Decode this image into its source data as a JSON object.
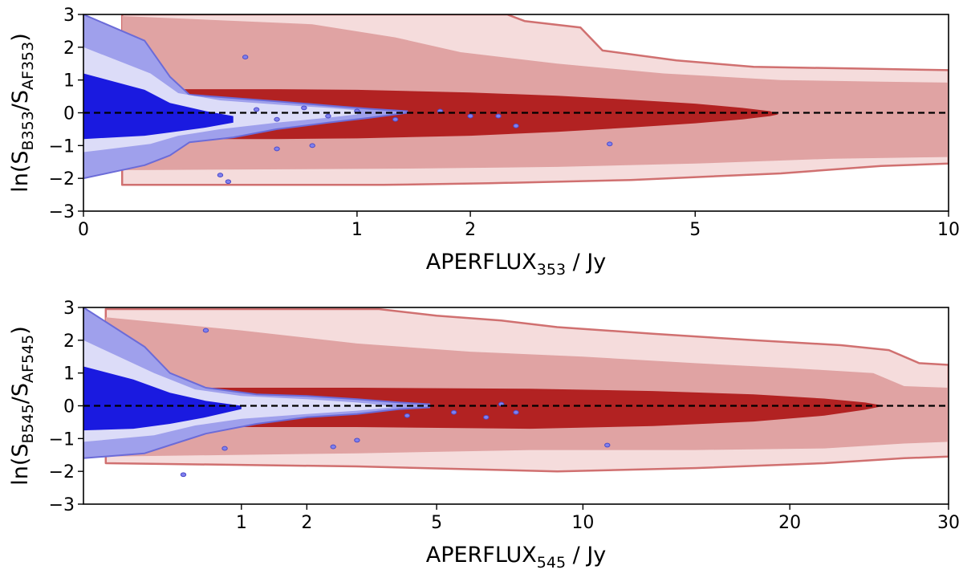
{
  "chart_data": [
    {
      "type": "contour",
      "xlabel": {
        "main": "APERFLUX",
        "sub": "353",
        "suffix": " / Jy"
      },
      "ylabel": {
        "prefix": "ln(S",
        "sub1": "B353",
        "mid": "/S",
        "sub2": "AF353",
        "suffix": ")"
      },
      "xlim": [
        0,
        10
      ],
      "ylim": [
        -3,
        3
      ],
      "x_ticks": [
        0,
        1,
        2,
        5,
        10
      ],
      "x_tick_labels": [
        "0",
        "1",
        "2",
        "5",
        "10"
      ],
      "x_scale": "sqrt",
      "y_ticks": [
        -3,
        -2,
        -1,
        0,
        1,
        2,
        3
      ],
      "y_tick_labels": [
        "−3",
        "−2",
        "−1",
        "0",
        "1",
        "2",
        "3"
      ],
      "reference_line": {
        "y": 0,
        "style": "dashed",
        "color": "#000000"
      },
      "red_contours": [
        {
          "level": "outer",
          "color": "#f5dcdc",
          "upper": [
            [
              0.02,
              3.0
            ],
            [
              2.4,
              3.0
            ],
            [
              2.6,
              2.8
            ],
            [
              3.3,
              2.6
            ],
            [
              3.6,
              1.9
            ],
            [
              4.7,
              1.6
            ],
            [
              6.0,
              1.4
            ],
            [
              8.0,
              1.35
            ],
            [
              10.0,
              1.3
            ]
          ],
          "lower": [
            [
              0.02,
              -2.2
            ],
            [
              1.2,
              -2.2
            ],
            [
              2.2,
              -2.15
            ],
            [
              4.0,
              -2.05
            ],
            [
              6.5,
              -1.85
            ],
            [
              8.5,
              -1.62
            ],
            [
              10.0,
              -1.55
            ]
          ]
        },
        {
          "level": "middle",
          "color": "#e0a3a3",
          "upper": [
            [
              0.02,
              2.95
            ],
            [
              0.7,
              2.7
            ],
            [
              1.3,
              2.3
            ],
            [
              1.9,
              1.85
            ],
            [
              3.0,
              1.5
            ],
            [
              4.5,
              1.2
            ],
            [
              6.5,
              1.0
            ],
            [
              8.5,
              0.95
            ],
            [
              10.0,
              0.92
            ]
          ],
          "lower": [
            [
              0.02,
              -1.75
            ],
            [
              1.5,
              -1.7
            ],
            [
              3.0,
              -1.65
            ],
            [
              5.0,
              -1.55
            ],
            [
              7.5,
              -1.4
            ],
            [
              10.0,
              -1.35
            ]
          ]
        },
        {
          "level": "inner",
          "color": "#b22222",
          "upper": [
            [
              0.02,
              0.72
            ],
            [
              0.5,
              0.72
            ],
            [
              1.0,
              0.7
            ],
            [
              2.0,
              0.62
            ],
            [
              3.0,
              0.52
            ],
            [
              4.0,
              0.4
            ],
            [
              5.0,
              0.28
            ],
            [
              5.8,
              0.15
            ],
            [
              6.3,
              0.05
            ],
            [
              6.45,
              -0.05
            ]
          ],
          "lower": [
            [
              0.02,
              -0.8
            ],
            [
              0.5,
              -0.8
            ],
            [
              1.0,
              -0.78
            ],
            [
              2.0,
              -0.7
            ],
            [
              3.0,
              -0.58
            ],
            [
              4.0,
              -0.45
            ],
            [
              5.0,
              -0.32
            ],
            [
              5.8,
              -0.2
            ],
            [
              6.3,
              -0.1
            ],
            [
              6.45,
              -0.05
            ]
          ]
        }
      ],
      "blue_contours": [
        {
          "level": "outer",
          "color": "#9fa0ec",
          "upper": [
            [
              0.0,
              3.0
            ],
            [
              0.05,
              2.2
            ],
            [
              0.1,
              1.1
            ],
            [
              0.15,
              0.55
            ],
            [
              0.3,
              0.45
            ],
            [
              0.5,
              0.35
            ],
            [
              0.8,
              0.22
            ],
            [
              1.1,
              0.12
            ],
            [
              1.4,
              0.05
            ]
          ],
          "lower": [
            [
              0.0,
              -2.0
            ],
            [
              0.05,
              -1.6
            ],
            [
              0.1,
              -1.3
            ],
            [
              0.15,
              -0.9
            ],
            [
              0.3,
              -0.75
            ],
            [
              0.5,
              -0.5
            ],
            [
              0.8,
              -0.3
            ],
            [
              1.1,
              -0.15
            ],
            [
              1.4,
              0.0
            ]
          ]
        },
        {
          "level": "middle",
          "color": "#dcdcf8",
          "upper": [
            [
              0.0,
              2.0
            ],
            [
              0.06,
              1.2
            ],
            [
              0.12,
              0.6
            ],
            [
              0.25,
              0.38
            ],
            [
              0.5,
              0.25
            ],
            [
              0.8,
              0.15
            ],
            [
              1.0,
              0.08
            ]
          ],
          "lower": [
            [
              0.0,
              -1.2
            ],
            [
              0.06,
              -0.95
            ],
            [
              0.12,
              -0.7
            ],
            [
              0.25,
              -0.5
            ],
            [
              0.5,
              -0.3
            ],
            [
              0.8,
              -0.15
            ],
            [
              1.0,
              -0.05
            ]
          ]
        },
        {
          "level": "inner",
          "color": "#1a1ae0",
          "upper": [
            [
              0.0,
              1.2
            ],
            [
              0.05,
              0.7
            ],
            [
              0.1,
              0.3
            ],
            [
              0.2,
              0.05
            ],
            [
              0.3,
              -0.1
            ]
          ],
          "lower": [
            [
              0.0,
              -0.8
            ],
            [
              0.05,
              -0.7
            ],
            [
              0.1,
              -0.6
            ],
            [
              0.2,
              -0.45
            ],
            [
              0.3,
              -0.3
            ]
          ]
        }
      ],
      "scatter_points": [
        [
          0.4,
          0.1
        ],
        [
          0.5,
          -0.2
        ],
        [
          0.65,
          0.15
        ],
        [
          0.8,
          -0.1
        ],
        [
          1.0,
          0.05
        ],
        [
          1.3,
          -0.2
        ],
        [
          1.7,
          0.05
        ],
        [
          2.0,
          -0.1
        ],
        [
          2.3,
          -0.1
        ],
        [
          2.5,
          -0.4
        ],
        [
          3.7,
          -0.95
        ],
        [
          0.25,
          -1.9
        ],
        [
          0.28,
          -2.1
        ],
        [
          0.5,
          -1.1
        ],
        [
          0.7,
          -1.0
        ],
        [
          0.35,
          1.7
        ]
      ]
    },
    {
      "type": "contour",
      "xlabel": {
        "main": "APERFLUX",
        "sub": "545",
        "suffix": " / Jy"
      },
      "ylabel": {
        "prefix": "ln(S",
        "sub1": "B545",
        "mid": "/S",
        "sub2": "AF545",
        "suffix": ")"
      },
      "xlim": [
        0,
        30
      ],
      "ylim": [
        -3,
        3
      ],
      "x_ticks": [
        1,
        2,
        5,
        10,
        20,
        30
      ],
      "x_tick_labels": [
        "1",
        "2",
        "5",
        "10",
        "20",
        "30"
      ],
      "x_scale": "sqrt",
      "y_ticks": [
        -3,
        -2,
        -1,
        0,
        1,
        2,
        3
      ],
      "y_tick_labels": [
        "−3",
        "−2",
        "−1",
        "0",
        "1",
        "2",
        "3"
      ],
      "reference_line": {
        "y": 0,
        "style": "dashed",
        "color": "#000000"
      },
      "red_contours": [
        {
          "level": "outer",
          "color": "#f5dcdc",
          "upper": [
            [
              0.02,
              2.95
            ],
            [
              3.5,
              2.95
            ],
            [
              5.0,
              2.75
            ],
            [
              7.0,
              2.6
            ],
            [
              9.0,
              2.4
            ],
            [
              13.0,
              2.2
            ],
            [
              18.0,
              2.0
            ],
            [
              23.0,
              1.85
            ],
            [
              26.0,
              1.7
            ],
            [
              28.0,
              1.3
            ],
            [
              30.0,
              1.25
            ]
          ],
          "lower": [
            [
              0.02,
              -1.75
            ],
            [
              3.0,
              -1.85
            ],
            [
              9.0,
              -2.0
            ],
            [
              15.0,
              -1.9
            ],
            [
              22.0,
              -1.75
            ],
            [
              27.0,
              -1.6
            ],
            [
              30.0,
              -1.55
            ]
          ]
        },
        {
          "level": "middle",
          "color": "#e0a3a3",
          "upper": [
            [
              0.02,
              2.7
            ],
            [
              1.0,
              2.3
            ],
            [
              3.0,
              1.9
            ],
            [
              6.0,
              1.65
            ],
            [
              10.0,
              1.5
            ],
            [
              15.0,
              1.3
            ],
            [
              20.0,
              1.15
            ],
            [
              25.0,
              1.0
            ],
            [
              27.0,
              0.6
            ],
            [
              30.0,
              0.55
            ]
          ],
          "lower": [
            [
              0.02,
              -1.55
            ],
            [
              3.0,
              -1.45
            ],
            [
              8.0,
              -1.35
            ],
            [
              15.0,
              -1.35
            ],
            [
              22.0,
              -1.3
            ],
            [
              27.0,
              -1.15
            ],
            [
              30.0,
              -1.1
            ]
          ]
        },
        {
          "level": "inner",
          "color": "#b22222",
          "upper": [
            [
              0.02,
              0.55
            ],
            [
              3.0,
              0.55
            ],
            [
              8.0,
              0.52
            ],
            [
              13.0,
              0.45
            ],
            [
              18.0,
              0.35
            ],
            [
              22.0,
              0.22
            ],
            [
              24.5,
              0.1
            ],
            [
              25.7,
              0.0
            ]
          ],
          "lower": [
            [
              0.02,
              -0.65
            ],
            [
              3.0,
              -0.65
            ],
            [
              8.0,
              -0.7
            ],
            [
              13.0,
              -0.62
            ],
            [
              18.0,
              -0.48
            ],
            [
              22.0,
              -0.3
            ],
            [
              24.5,
              -0.12
            ],
            [
              25.7,
              0.0
            ]
          ]
        }
      ],
      "blue_contours": [
        {
          "level": "outer",
          "color": "#9fa0ec",
          "upper": [
            [
              0.0,
              3.0
            ],
            [
              0.15,
              1.8
            ],
            [
              0.3,
              1.0
            ],
            [
              0.6,
              0.55
            ],
            [
              1.2,
              0.35
            ],
            [
              2.0,
              0.3
            ],
            [
              3.0,
              0.2
            ],
            [
              4.0,
              0.1
            ],
            [
              4.8,
              0.05
            ]
          ],
          "lower": [
            [
              0.0,
              -1.6
            ],
            [
              0.15,
              -1.45
            ],
            [
              0.3,
              -1.2
            ],
            [
              0.6,
              -0.85
            ],
            [
              1.2,
              -0.55
            ],
            [
              2.0,
              -0.35
            ],
            [
              3.0,
              -0.25
            ],
            [
              4.0,
              -0.1
            ],
            [
              4.8,
              -0.05
            ]
          ]
        },
        {
          "level": "middle",
          "color": "#dcdcf8",
          "upper": [
            [
              0.0,
              2.0
            ],
            [
              0.2,
              1.0
            ],
            [
              0.5,
              0.5
            ],
            [
              1.0,
              0.3
            ],
            [
              2.0,
              0.2
            ],
            [
              3.0,
              0.1
            ],
            [
              3.8,
              0.0
            ]
          ],
          "lower": [
            [
              0.0,
              -1.1
            ],
            [
              0.2,
              -0.9
            ],
            [
              0.5,
              -0.6
            ],
            [
              1.0,
              -0.4
            ],
            [
              2.0,
              -0.25
            ],
            [
              3.0,
              -0.15
            ],
            [
              3.8,
              -0.05
            ]
          ]
        },
        {
          "level": "inner",
          "color": "#1a1ae0",
          "upper": [
            [
              0.0,
              1.2
            ],
            [
              0.1,
              0.8
            ],
            [
              0.3,
              0.4
            ],
            [
              0.6,
              0.15
            ],
            [
              1.0,
              0.0
            ]
          ],
          "lower": [
            [
              0.0,
              -0.75
            ],
            [
              0.1,
              -0.7
            ],
            [
              0.3,
              -0.55
            ],
            [
              0.6,
              -0.35
            ],
            [
              1.0,
              -0.1
            ]
          ]
        }
      ],
      "scatter_points": [
        [
          2.5,
          -1.25
        ],
        [
          3.0,
          -1.05
        ],
        [
          4.2,
          -0.3
        ],
        [
          5.5,
          -0.2
        ],
        [
          6.5,
          -0.35
        ],
        [
          7.0,
          0.05
        ],
        [
          7.5,
          -0.2
        ],
        [
          11.0,
          -1.2
        ],
        [
          0.8,
          -1.3
        ],
        [
          0.4,
          -2.1
        ],
        [
          0.6,
          2.3
        ]
      ]
    }
  ]
}
